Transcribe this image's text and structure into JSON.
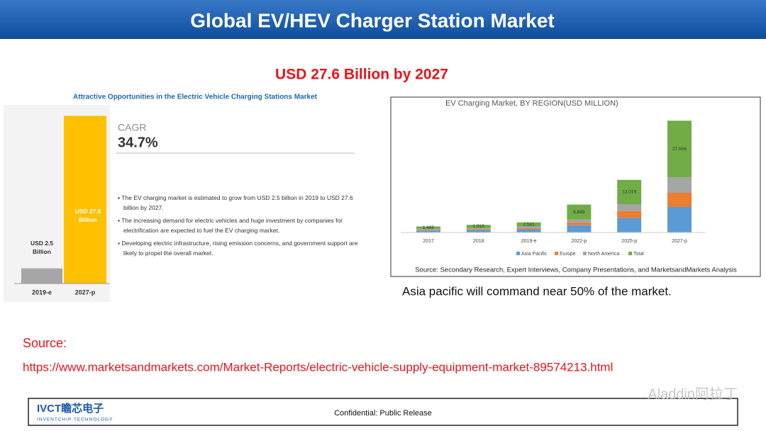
{
  "header": {
    "title": "Global EV/HEV Charger Station Market"
  },
  "headline": "USD 27.6 Billion by 2027",
  "left_panel": {
    "cagr_label": "CAGR",
    "cagr_value": "34.7%",
    "bullets": [
      "The EV charging market is estimated to grow from USD 2.5 billion in 2019 to USD 27.6 billion by 2027.",
      "The increasing demand for electric vehicles and huge investment by companies for electrification are expected to fuel the EV charging market.",
      "Developing electric infrastructure, rising emission concerns, and government support are likely to propel the overall market."
    ]
  },
  "caption": "Asia pacific will command near 50% of the market.",
  "source": {
    "label": "Source:",
    "url": "https://www.marketsandmarkets.com/Market-Reports/electric-vehicle-supply-equipment-market-89574213.html"
  },
  "footer": {
    "logo": "IVCT瞻芯电子",
    "logo_sub": "INVENTCHIP TECHNOLOGY",
    "notice": "Confidential: Public Release"
  },
  "watermark": "Aladdin阿拉丁",
  "chart_data": [
    {
      "type": "bar",
      "title": "Attractive Opportunities in the Electric Vehicle Charging Stations Market",
      "categories": [
        "2019-e",
        "2027-p"
      ],
      "values": [
        2.5,
        27.6
      ],
      "value_labels": [
        "USD 2.5 Billion",
        "USD 27.6 Billion"
      ],
      "colors": [
        "#a6a6a6",
        "#ffc000"
      ],
      "ylim": [
        0,
        28
      ]
    },
    {
      "type": "stacked_bar",
      "title": "EV Charging Market, BY REGION(USD MILLION)",
      "categories": [
        "2017",
        "2018",
        "2019-e",
        "2022-p",
        "2025-p",
        "2027-p"
      ],
      "series": [
        {
          "name": "Asia Pacific",
          "color": "#5b9bd5",
          "values": [
            500,
            600,
            800,
            1800,
            3600,
            6300
          ]
        },
        {
          "name": "Europe",
          "color": "#ed7d31",
          "values": [
            150,
            200,
            300,
            700,
            1700,
            3500
          ]
        },
        {
          "name": "North America",
          "color": "#a5a5a5",
          "values": [
            250,
            300,
            400,
            700,
            1700,
            3800
          ]
        },
        {
          "name": "Total",
          "color": "#70ad47",
          "values": [
            600,
            800,
            1000,
            3700,
            6000,
            14000
          ]
        }
      ],
      "annotations": [
        "1,485",
        "1,919",
        "2,541",
        "6,899",
        "13,019",
        "27,606"
      ],
      "ylim": [
        0,
        28000
      ],
      "note": "Source: Secondary Research, Expert Interviews, Company Presentations, and MarketsandMarkets Analysis"
    }
  ]
}
